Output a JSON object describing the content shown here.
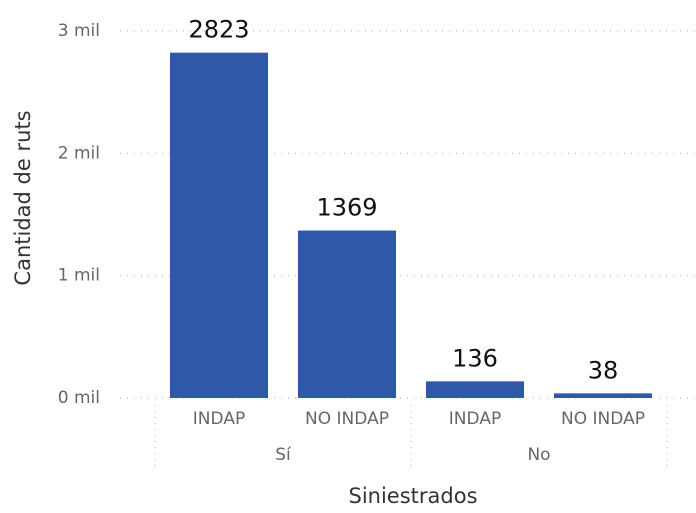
{
  "chart_data": {
    "type": "bar",
    "x_label": "Siniestrados",
    "y_label": "Cantidad de ruts",
    "groups": [
      {
        "name": "Sí",
        "categories": [
          "INDAP",
          "NO INDAP"
        ]
      },
      {
        "name": "No",
        "categories": [
          "INDAP",
          "NO INDAP"
        ]
      }
    ],
    "values": [
      2823,
      1369,
      136,
      38
    ],
    "color": "#3058a8",
    "ylim": [
      0,
      3000
    ],
    "yticks": [
      {
        "value": 0,
        "label": "0 mil"
      },
      {
        "value": 1000,
        "label": "1 mil"
      },
      {
        "value": 2000,
        "label": "2 mil"
      },
      {
        "value": 3000,
        "label": "3 mil"
      }
    ],
    "grid": true
  }
}
